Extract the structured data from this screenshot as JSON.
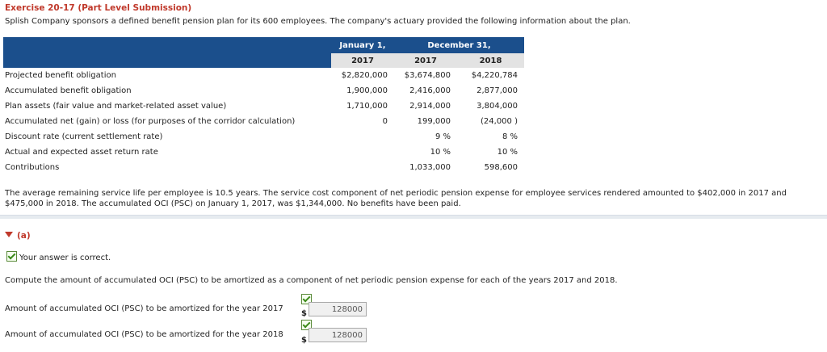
{
  "exercise_title": "Exercise 20-17 (Part Level Submission)",
  "intro": "Splish Company sponsors a defined benefit pension plan for its 600 employees. The company's actuary provided the following information about the plan.",
  "table": {
    "header_jan": "January 1,",
    "header_dec": "December 31,",
    "years": [
      "2017",
      "2017",
      "2018"
    ],
    "rows": [
      {
        "label": "Projected benefit obligation",
        "v": [
          "$2,820,000",
          "$3,674,800",
          "$4,220,784"
        ]
      },
      {
        "label": "Accumulated benefit obligation",
        "v": [
          "1,900,000",
          "2,416,000",
          "2,877,000"
        ]
      },
      {
        "label": "Plan assets (fair value and market-related asset value)",
        "v": [
          "1,710,000",
          "2,914,000",
          "3,804,000"
        ]
      },
      {
        "label": "Accumulated net (gain) or loss (for purposes of the corridor calculation)",
        "v": [
          "0",
          "199,000",
          "(24,000 )"
        ]
      },
      {
        "label": "Discount rate (current settlement rate)",
        "v": [
          "",
          "9 %",
          "8 %"
        ]
      },
      {
        "label": "Actual and expected asset return rate",
        "v": [
          "",
          "10 %",
          "10 %"
        ]
      },
      {
        "label": "Contributions",
        "v": [
          "",
          "1,033,000",
          "598,600"
        ]
      }
    ]
  },
  "paragraph": "The average remaining service life per employee is 10.5 years. The service cost component of net periodic pension expense for employee services rendered amounted to $402,000 in 2017 and $475,000 in 2018. The accumulated OCI (PSC) on January 1, 2017, was $1,344,000. No benefits have been paid.",
  "part_label": "(a)",
  "correct_msg": "Your answer is correct.",
  "instruction": "Compute the amount of accumulated OCI (PSC) to be amortized as a component of net periodic pension expense for each of the years 2017 and 2018.",
  "answers": [
    {
      "label": "Amount of accumulated OCI (PSC) to be amortized for the year 2017",
      "currency": "$",
      "value": "128000"
    },
    {
      "label": "Amount of accumulated OCI (PSC) to be amortized for the year 2018",
      "currency": "$",
      "value": "128000"
    }
  ]
}
